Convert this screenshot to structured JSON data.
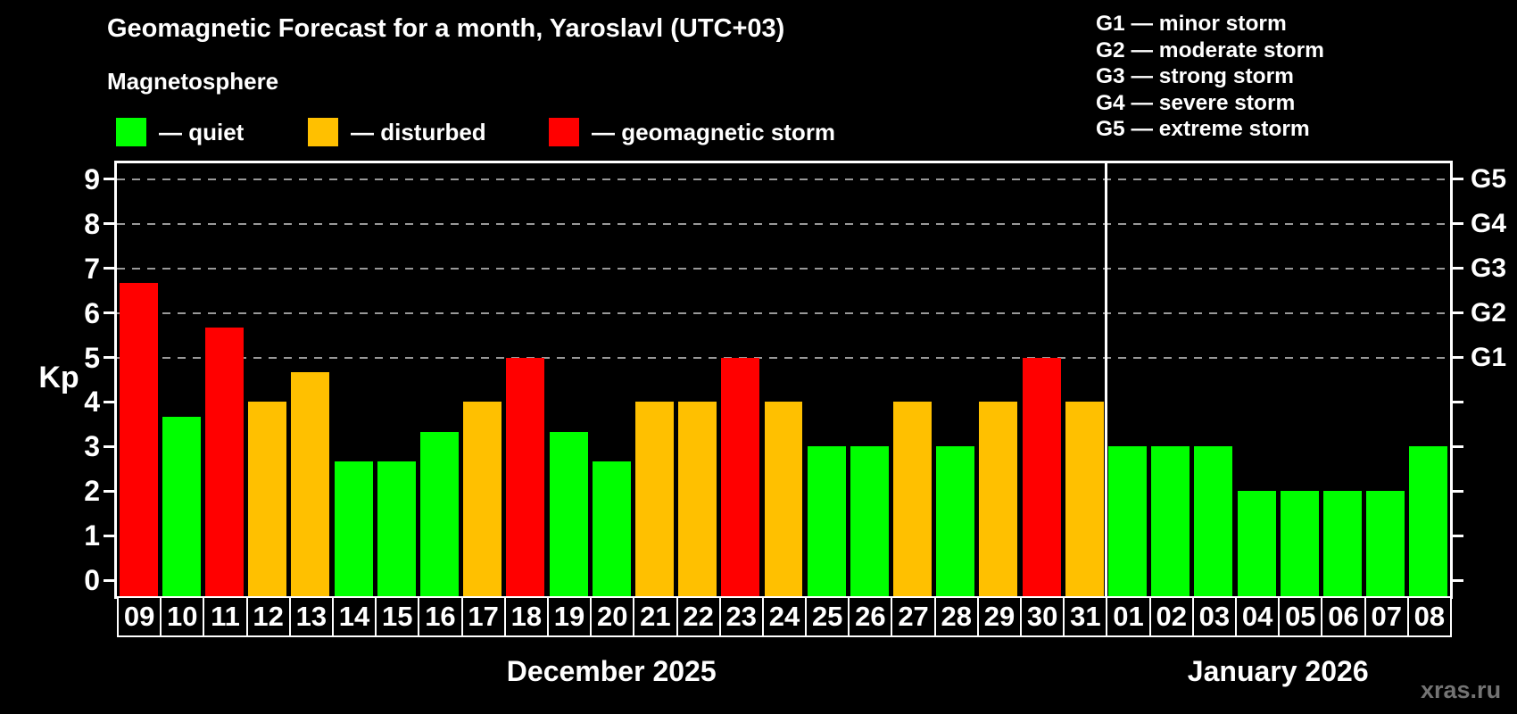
{
  "chart_data": {
    "type": "bar",
    "title": "Geomagnetic Forecast for a month, Yaroslavl (UTC+03)",
    "subtitle": "Magnetosphere",
    "ylabel": "Kp",
    "ylim": [
      0,
      9
    ],
    "yticks": [
      0,
      1,
      2,
      3,
      4,
      5,
      6,
      7,
      8,
      9
    ],
    "gridlines_at": [
      5,
      6,
      7,
      8,
      9
    ],
    "grid": "dashed horizontal at storm levels only",
    "legend_position": "top-left above plot",
    "legend": [
      {
        "key": "quiet",
        "label": "— quiet",
        "color": "#00ff00"
      },
      {
        "key": "disturbed",
        "label": "— disturbed",
        "color": "#ffc000"
      },
      {
        "key": "storm",
        "label": "— geomagnetic storm",
        "color": "#ff0000"
      }
    ],
    "storm_scale_legend": [
      "G1 — minor storm",
      "G2 — moderate storm",
      "G3 — strong storm",
      "G4 — severe storm",
      "G5 — extreme storm"
    ],
    "right_axis": [
      {
        "kp": 5,
        "label": "G1"
      },
      {
        "kp": 6,
        "label": "G2"
      },
      {
        "kp": 7,
        "label": "G3"
      },
      {
        "kp": 8,
        "label": "G4"
      },
      {
        "kp": 9,
        "label": "G5"
      }
    ],
    "months": [
      {
        "label": "December 2025",
        "days": 23
      },
      {
        "label": "January 2026",
        "days": 8
      }
    ],
    "bars": [
      {
        "day": "09",
        "kp": 6.67,
        "level": "storm"
      },
      {
        "day": "10",
        "kp": 3.67,
        "level": "quiet"
      },
      {
        "day": "11",
        "kp": 5.67,
        "level": "storm"
      },
      {
        "day": "12",
        "kp": 4.0,
        "level": "disturbed"
      },
      {
        "day": "13",
        "kp": 4.67,
        "level": "disturbed"
      },
      {
        "day": "14",
        "kp": 2.67,
        "level": "quiet"
      },
      {
        "day": "15",
        "kp": 2.67,
        "level": "quiet"
      },
      {
        "day": "16",
        "kp": 3.33,
        "level": "quiet"
      },
      {
        "day": "17",
        "kp": 4.0,
        "level": "disturbed"
      },
      {
        "day": "18",
        "kp": 5.0,
        "level": "storm"
      },
      {
        "day": "19",
        "kp": 3.33,
        "level": "quiet"
      },
      {
        "day": "20",
        "kp": 2.67,
        "level": "quiet"
      },
      {
        "day": "21",
        "kp": 4.0,
        "level": "disturbed"
      },
      {
        "day": "22",
        "kp": 4.0,
        "level": "disturbed"
      },
      {
        "day": "23",
        "kp": 5.0,
        "level": "storm"
      },
      {
        "day": "24",
        "kp": 4.0,
        "level": "disturbed"
      },
      {
        "day": "25",
        "kp": 3.0,
        "level": "quiet"
      },
      {
        "day": "26",
        "kp": 3.0,
        "level": "quiet"
      },
      {
        "day": "27",
        "kp": 4.0,
        "level": "disturbed"
      },
      {
        "day": "28",
        "kp": 3.0,
        "level": "quiet"
      },
      {
        "day": "29",
        "kp": 4.0,
        "level": "disturbed"
      },
      {
        "day": "30",
        "kp": 5.0,
        "level": "storm"
      },
      {
        "day": "31",
        "kp": 4.0,
        "level": "disturbed"
      },
      {
        "day": "01",
        "kp": 3.0,
        "level": "quiet"
      },
      {
        "day": "02",
        "kp": 3.0,
        "level": "quiet"
      },
      {
        "day": "03",
        "kp": 3.0,
        "level": "quiet"
      },
      {
        "day": "04",
        "kp": 2.0,
        "level": "quiet"
      },
      {
        "day": "05",
        "kp": 2.0,
        "level": "quiet"
      },
      {
        "day": "06",
        "kp": 2.0,
        "level": "quiet"
      },
      {
        "day": "07",
        "kp": 2.0,
        "level": "quiet"
      },
      {
        "day": "08",
        "kp": 3.0,
        "level": "quiet"
      }
    ],
    "watermark": "xras.ru"
  }
}
